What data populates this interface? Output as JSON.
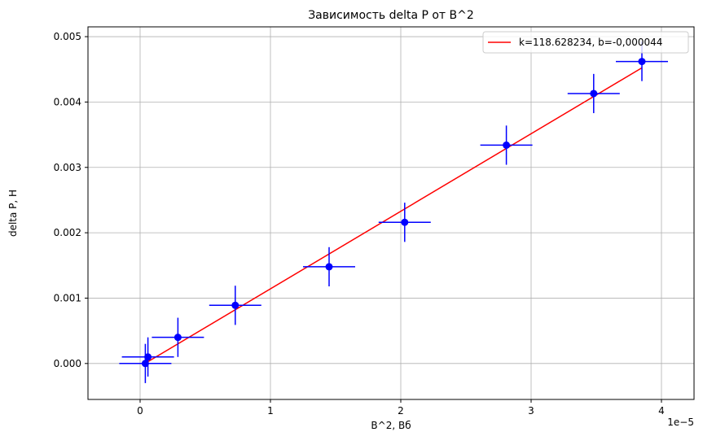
{
  "chart_data": {
    "type": "scatter",
    "title": "Зависимость delta P от B^2",
    "xlabel": "B^2, Вб",
    "ylabel": "delta P, Н",
    "x_offset_label": "1e−5",
    "xlim": [
      -0.4,
      4.25
    ],
    "ylim": [
      -0.00055,
      0.00515
    ],
    "x_ticks": [
      0,
      1,
      2,
      3,
      4
    ],
    "x_tick_labels": [
      "0",
      "1",
      "2",
      "3",
      "4"
    ],
    "y_ticks": [
      0.0,
      0.001,
      0.002,
      0.003,
      0.004,
      0.005
    ],
    "y_tick_labels": [
      "0.000",
      "0.001",
      "0.002",
      "0.003",
      "0.004",
      "0.005"
    ],
    "grid": true,
    "legend_position": "upper right",
    "series": [
      {
        "kind": "errorbar",
        "color": "#0000ff",
        "x": [
          0.04,
          0.06,
          0.29,
          0.73,
          1.45,
          2.03,
          2.81,
          3.48,
          3.85
        ],
        "y": [
          0.0,
          0.0001,
          0.0004,
          0.00089,
          0.00148,
          0.00216,
          0.00334,
          0.00413,
          0.00462
        ],
        "xerr": 0.2,
        "yerr": 0.0003
      },
      {
        "kind": "line",
        "name": "k=118.628234, b=-0,000044",
        "color": "#ff0000",
        "x": [
          0.04,
          3.85
        ],
        "y": [
          3.5e-06,
          0.0045232
        ]
      }
    ]
  }
}
